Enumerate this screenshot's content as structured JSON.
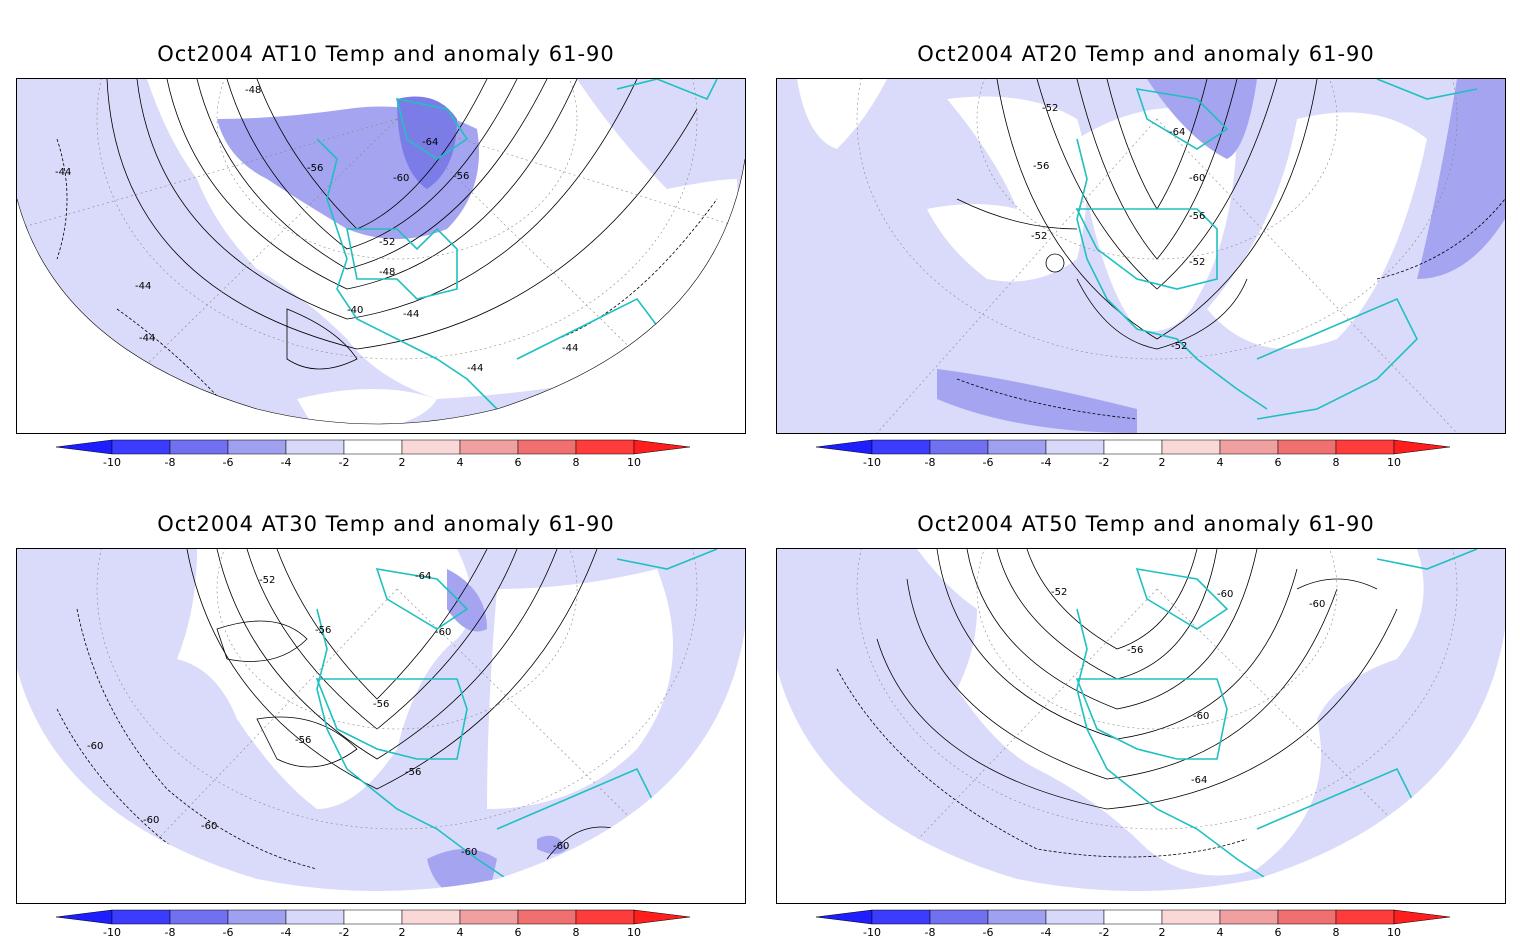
{
  "panels": [
    {
      "title": "Oct2004 AT10 Temp and anomaly 61-90",
      "contour_labels": [
        "-48",
        "-64",
        "-56",
        "-60",
        "-56",
        "-44",
        "-52",
        "-48",
        "-44",
        "-40",
        "-44",
        "-44",
        "-44",
        "-44"
      ]
    },
    {
      "title": "Oct2004 AT20 Temp and anomaly 61-90",
      "contour_labels": [
        "-52",
        "-64",
        "-56",
        "-60",
        "-56",
        "-52",
        "-52",
        "-52"
      ]
    },
    {
      "title": "Oct2004 AT30 Temp and anomaly 61-90",
      "contour_labels": [
        "-52",
        "-64",
        "-56",
        "-60",
        "-56",
        "-56",
        "-56",
        "-60",
        "-60",
        "-60",
        "-60",
        "-60"
      ]
    },
    {
      "title": "Oct2004 AT50 Temp and anomaly 61-90",
      "contour_labels": [
        "-52",
        "-60",
        "-60",
        "-56",
        "-60",
        "-64"
      ]
    }
  ],
  "colorbar": {
    "tick_labels": [
      "-10",
      "-8",
      "-6",
      "-4",
      "-2",
      "2",
      "4",
      "6",
      "8",
      "10"
    ],
    "colors": [
      "#1e1eff",
      "#3c3cff",
      "#7070f0",
      "#a0a0f0",
      "#d8d8fa",
      "#ffffff",
      "#fad8d8",
      "#f0a0a0",
      "#f07070",
      "#ff3c3c",
      "#ff1e1e"
    ]
  },
  "map_colors": {
    "coastline": "#20c0c0",
    "anomaly_light_blue": "#dadafa",
    "anomaly_mid_blue": "#a4a4f0",
    "anomaly_dark_blue": "#7c7ce8",
    "contour": "#000000",
    "grid": "#888888"
  }
}
